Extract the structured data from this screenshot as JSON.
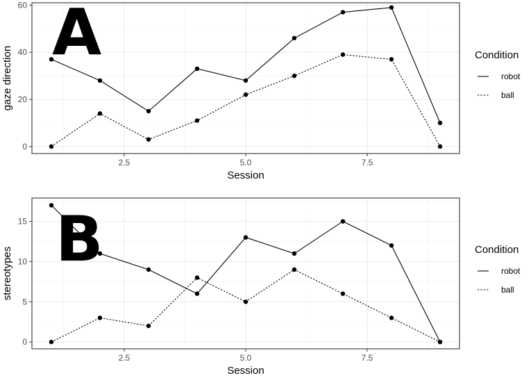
{
  "chart_data": [
    {
      "type": "line",
      "panel_label": "A",
      "xlabel": "Session",
      "ylabel": "gaze direction",
      "xlim": [
        0.6,
        9.4
      ],
      "ylim": [
        -3,
        61
      ],
      "x_ticks": [
        2.5,
        5.0,
        7.5
      ],
      "x_tick_labels": [
        "2.5",
        "5.0",
        "7.5"
      ],
      "y_ticks": [
        0,
        20,
        40,
        60
      ],
      "y_tick_labels": [
        "0",
        "20",
        "40",
        "60"
      ],
      "grid": true,
      "legend": {
        "title": "Condition",
        "placement": "right"
      },
      "x": [
        1,
        2,
        3,
        4,
        5,
        6,
        7,
        8,
        9
      ],
      "series": [
        {
          "name": "robot",
          "dash": "solid",
          "values": [
            37,
            28,
            15,
            33,
            28,
            46,
            57,
            59,
            10
          ]
        },
        {
          "name": "ball",
          "dash": "dotted",
          "values": [
            0,
            14,
            3,
            11,
            22,
            30,
            39,
            37,
            0
          ]
        }
      ]
    },
    {
      "type": "line",
      "panel_label": "B",
      "xlabel": "Session",
      "ylabel": "stereotypes",
      "xlim": [
        0.6,
        9.4
      ],
      "ylim": [
        -0.85,
        17.9
      ],
      "x_ticks": [
        2.5,
        5.0,
        7.5
      ],
      "x_tick_labels": [
        "2.5",
        "5.0",
        "7.5"
      ],
      "y_ticks": [
        0,
        5,
        10,
        15
      ],
      "y_tick_labels": [
        "0",
        "5",
        "10",
        "15"
      ],
      "grid": true,
      "legend": {
        "title": "Condition",
        "placement": "right"
      },
      "x": [
        1,
        2,
        3,
        4,
        5,
        6,
        7,
        8,
        9
      ],
      "series": [
        {
          "name": "robot",
          "dash": "solid",
          "values": [
            17,
            11,
            9,
            6,
            13,
            11,
            15,
            12,
            0
          ]
        },
        {
          "name": "ball",
          "dash": "dotted",
          "values": [
            0,
            3,
            2,
            8,
            5,
            9,
            6,
            3,
            0
          ]
        }
      ]
    }
  ]
}
